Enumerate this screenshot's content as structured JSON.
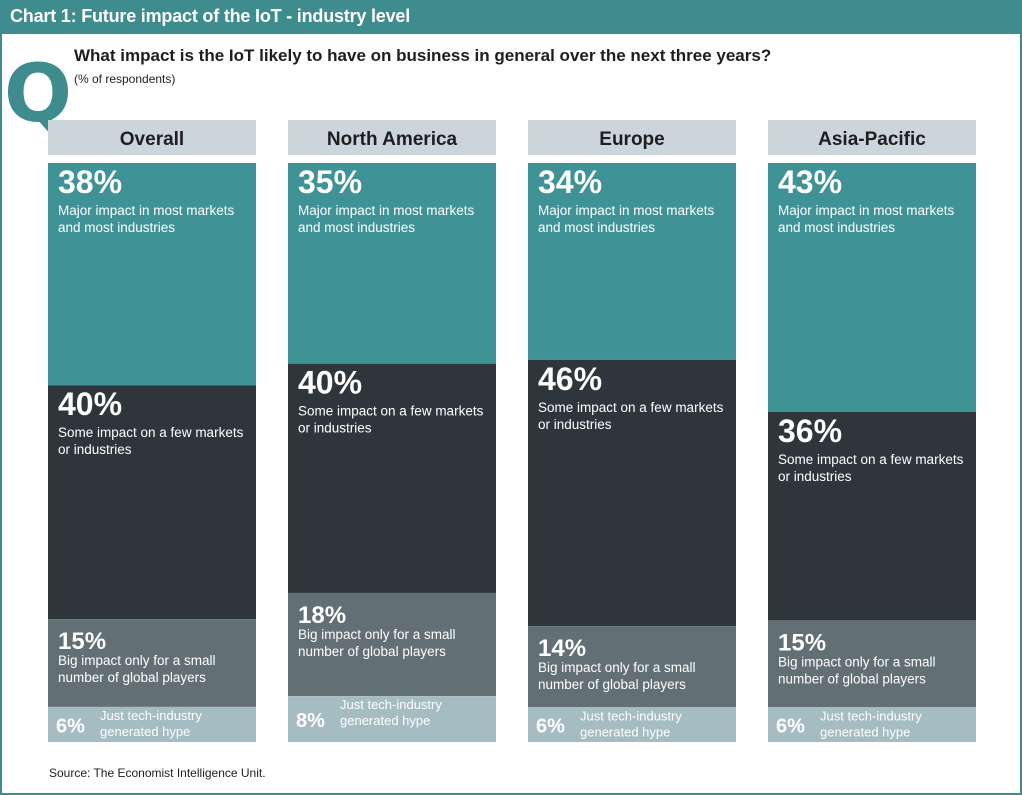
{
  "header": {
    "title": "Chart 1: Future impact of the IoT - industry level"
  },
  "question": {
    "letter": "Q",
    "text": "What impact is the IoT likely to have on business in general over the next three years?",
    "unit": "(% of respondents)"
  },
  "source": "Source: The Economist Intelligence Unit.",
  "colors": {
    "major": "#3f9397",
    "some": "#2f363b",
    "big": "#626f75",
    "hype": "#a6bcc3",
    "panel_header": "#ccd6da",
    "frame": "#3f8c8f"
  },
  "chart_data": {
    "type": "bar",
    "stacked": true,
    "orientation": "vertical",
    "title": "Chart 1: Future impact of the IoT - industry level",
    "categories": [
      "Overall",
      "North America",
      "Europe",
      "Asia-Pacific"
    ],
    "series": [
      {
        "name": "Major impact in most markets and most industries",
        "values": [
          38,
          35,
          34,
          43
        ],
        "labels": [
          "38%",
          "35%",
          "34%",
          "43%"
        ]
      },
      {
        "name": "Some impact on a few markets or industries",
        "values": [
          40,
          40,
          46,
          36
        ],
        "labels": [
          "40%",
          "40%",
          "46%",
          "36%"
        ]
      },
      {
        "name": "Big impact only for a small number of global players",
        "values": [
          15,
          18,
          14,
          15
        ],
        "labels": [
          "15%",
          "18%",
          "14%",
          "15%"
        ]
      },
      {
        "name": "Just tech-industry generated hype",
        "values": [
          6,
          8,
          6,
          6
        ],
        "labels": [
          "6%",
          "8%",
          "6%",
          "6%"
        ]
      }
    ],
    "series_text": [
      [
        "Major impact in most markets",
        "and most industries"
      ],
      [
        "Some impact on a few markets",
        "or industries"
      ],
      [
        "Big impact only for a small",
        "number of global players"
      ],
      [
        "Just tech-industry",
        "generated hype"
      ]
    ],
    "ylim": [
      0,
      100
    ],
    "grid": false
  }
}
